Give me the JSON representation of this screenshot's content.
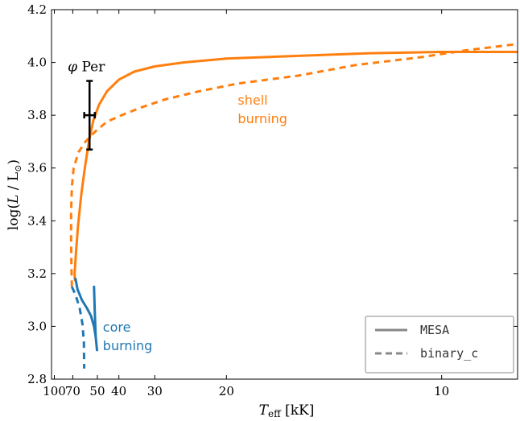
{
  "chart_data": {
    "type": "line",
    "xlabel": {
      "symbol": "T",
      "sub": "eff",
      "unit": " [kK]"
    },
    "ylabel": {
      "prefix": "log(",
      "L": "L",
      "mid": " / L",
      "sun": "⊙",
      "suffix": ")"
    },
    "x_scale": "reciprocal",
    "xlim": [
      107,
      8.5
    ],
    "ylim": [
      2.8,
      4.2
    ],
    "xticks": [
      100,
      70,
      50,
      40,
      30,
      20,
      10
    ],
    "yticks": [
      2.8,
      3.0,
      3.2,
      3.4,
      3.6,
      3.8,
      4.0,
      4.2
    ],
    "grid": false,
    "legend": {
      "placement": "lower-right",
      "entries": [
        {
          "label": "MESA",
          "style": "solid"
        },
        {
          "label": "binary_c",
          "style": "dashed"
        }
      ]
    },
    "colors": {
      "shell": "#ff7f0e",
      "core": "#1f77b4",
      "point": "#000000",
      "legend_line": "#888888"
    },
    "series": [
      {
        "group": "shell",
        "style": "solid",
        "points": [
          [
            67.5,
            3.175
          ],
          [
            67.9,
            3.185
          ],
          [
            68.0,
            3.2
          ],
          [
            66.5,
            3.28
          ],
          [
            64.5,
            3.38
          ],
          [
            61.5,
            3.5
          ],
          [
            58.5,
            3.6
          ],
          [
            55.5,
            3.7
          ],
          [
            52.5,
            3.78
          ],
          [
            49.0,
            3.84
          ],
          [
            45.0,
            3.89
          ],
          [
            40.0,
            3.935
          ],
          [
            35.0,
            3.965
          ],
          [
            30.0,
            3.985
          ],
          [
            25.0,
            4.0
          ],
          [
            20.0,
            4.015
          ],
          [
            15.0,
            4.025
          ],
          [
            12.0,
            4.035
          ],
          [
            10.0,
            4.04
          ],
          [
            8.5,
            4.04
          ]
        ]
      },
      {
        "group": "shell",
        "style": "dashed",
        "points": [
          [
            71.0,
            3.15
          ],
          [
            71.5,
            3.22
          ],
          [
            72.0,
            3.32
          ],
          [
            72.0,
            3.43
          ],
          [
            71.0,
            3.53
          ],
          [
            69.0,
            3.6
          ],
          [
            64.0,
            3.66
          ],
          [
            58.0,
            3.7
          ],
          [
            51.0,
            3.74
          ],
          [
            45.0,
            3.775
          ],
          [
            39.0,
            3.8
          ],
          [
            33.0,
            3.83
          ],
          [
            28.0,
            3.86
          ],
          [
            23.0,
            3.89
          ],
          [
            19.0,
            3.92
          ],
          [
            15.0,
            3.95
          ],
          [
            12.5,
            3.99
          ],
          [
            10.5,
            4.02
          ],
          [
            9.5,
            4.045
          ],
          [
            8.5,
            4.07
          ]
        ]
      },
      {
        "group": "core",
        "style": "solid",
        "points": [
          [
            67.0,
            3.18
          ],
          [
            65.0,
            3.14
          ],
          [
            61.0,
            3.1
          ],
          [
            57.0,
            3.07
          ],
          [
            54.0,
            3.04
          ],
          [
            52.0,
            3.0
          ],
          [
            51.0,
            2.96
          ],
          [
            50.2,
            2.91
          ],
          [
            51.0,
            2.96
          ],
          [
            51.5,
            3.05
          ],
          [
            52.0,
            3.15
          ]
        ]
      },
      {
        "group": "core",
        "style": "dashed",
        "points": [
          [
            71.0,
            3.15
          ],
          [
            67.0,
            3.12
          ],
          [
            63.0,
            3.07
          ],
          [
            60.5,
            3.01
          ],
          [
            59.3,
            2.94
          ],
          [
            59.0,
            2.84
          ]
        ]
      }
    ],
    "point": {
      "label": "φ Per",
      "teff": 55.0,
      "logL": 3.8,
      "teff_err": [
        59.0,
        51.5
      ],
      "logL_err": [
        3.67,
        3.93
      ]
    },
    "annotations": [
      {
        "group": "shell",
        "lines": [
          "shell",
          "burning"
        ],
        "teff": 19.0,
        "logL": [
          3.84,
          3.77
        ]
      },
      {
        "group": "core",
        "lines": [
          "core",
          "burning"
        ],
        "teff": 47.0,
        "logL": [
          2.98,
          2.91
        ]
      }
    ]
  }
}
